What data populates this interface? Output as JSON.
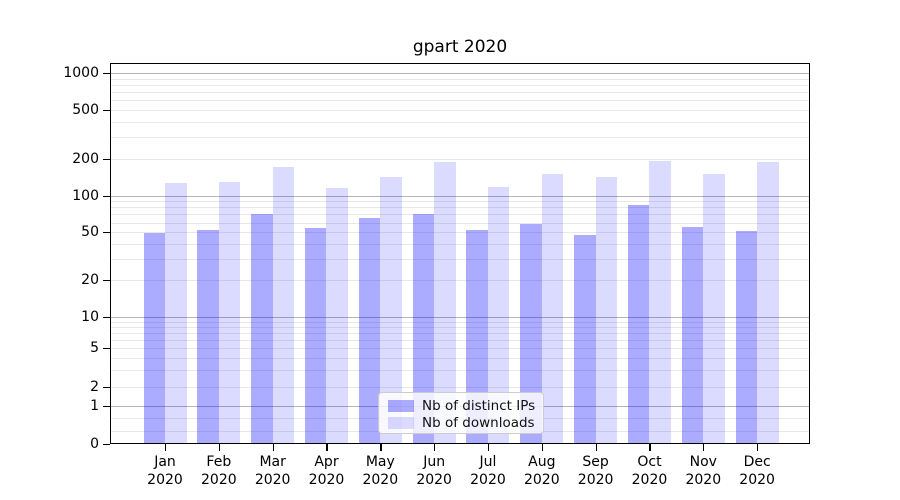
{
  "chart_data": {
    "type": "bar",
    "title": "gpart 2020",
    "xlabel": "",
    "ylabel": "",
    "yscale": "symlog",
    "ylim": [
      0,
      1200
    ],
    "yticks": [
      0,
      1,
      2,
      5,
      10,
      20,
      50,
      100,
      200,
      500,
      1000
    ],
    "grid": true,
    "legend_position": "lower center (inside plot)",
    "categories": [
      "Jan",
      "Feb",
      "Mar",
      "Apr",
      "May",
      "Jun",
      "Jul",
      "Aug",
      "Sep",
      "Oct",
      "Nov",
      "Dec"
    ],
    "year": "2020",
    "series": [
      {
        "name": "Nb of distinct IPs",
        "color": "#a9a9f7",
        "rgba": "rgba(0,0,255,0.33)",
        "values": [
          49,
          52,
          70,
          54,
          66,
          71,
          52,
          58,
          47,
          83,
          55,
          51
        ]
      },
      {
        "name": "Nb of downloads",
        "color": "#dcdcfb",
        "rgba": "rgba(0,0,255,0.14)",
        "values": [
          126,
          130,
          173,
          116,
          143,
          189,
          117,
          150,
          143,
          192,
          150,
          188
        ]
      }
    ]
  }
}
